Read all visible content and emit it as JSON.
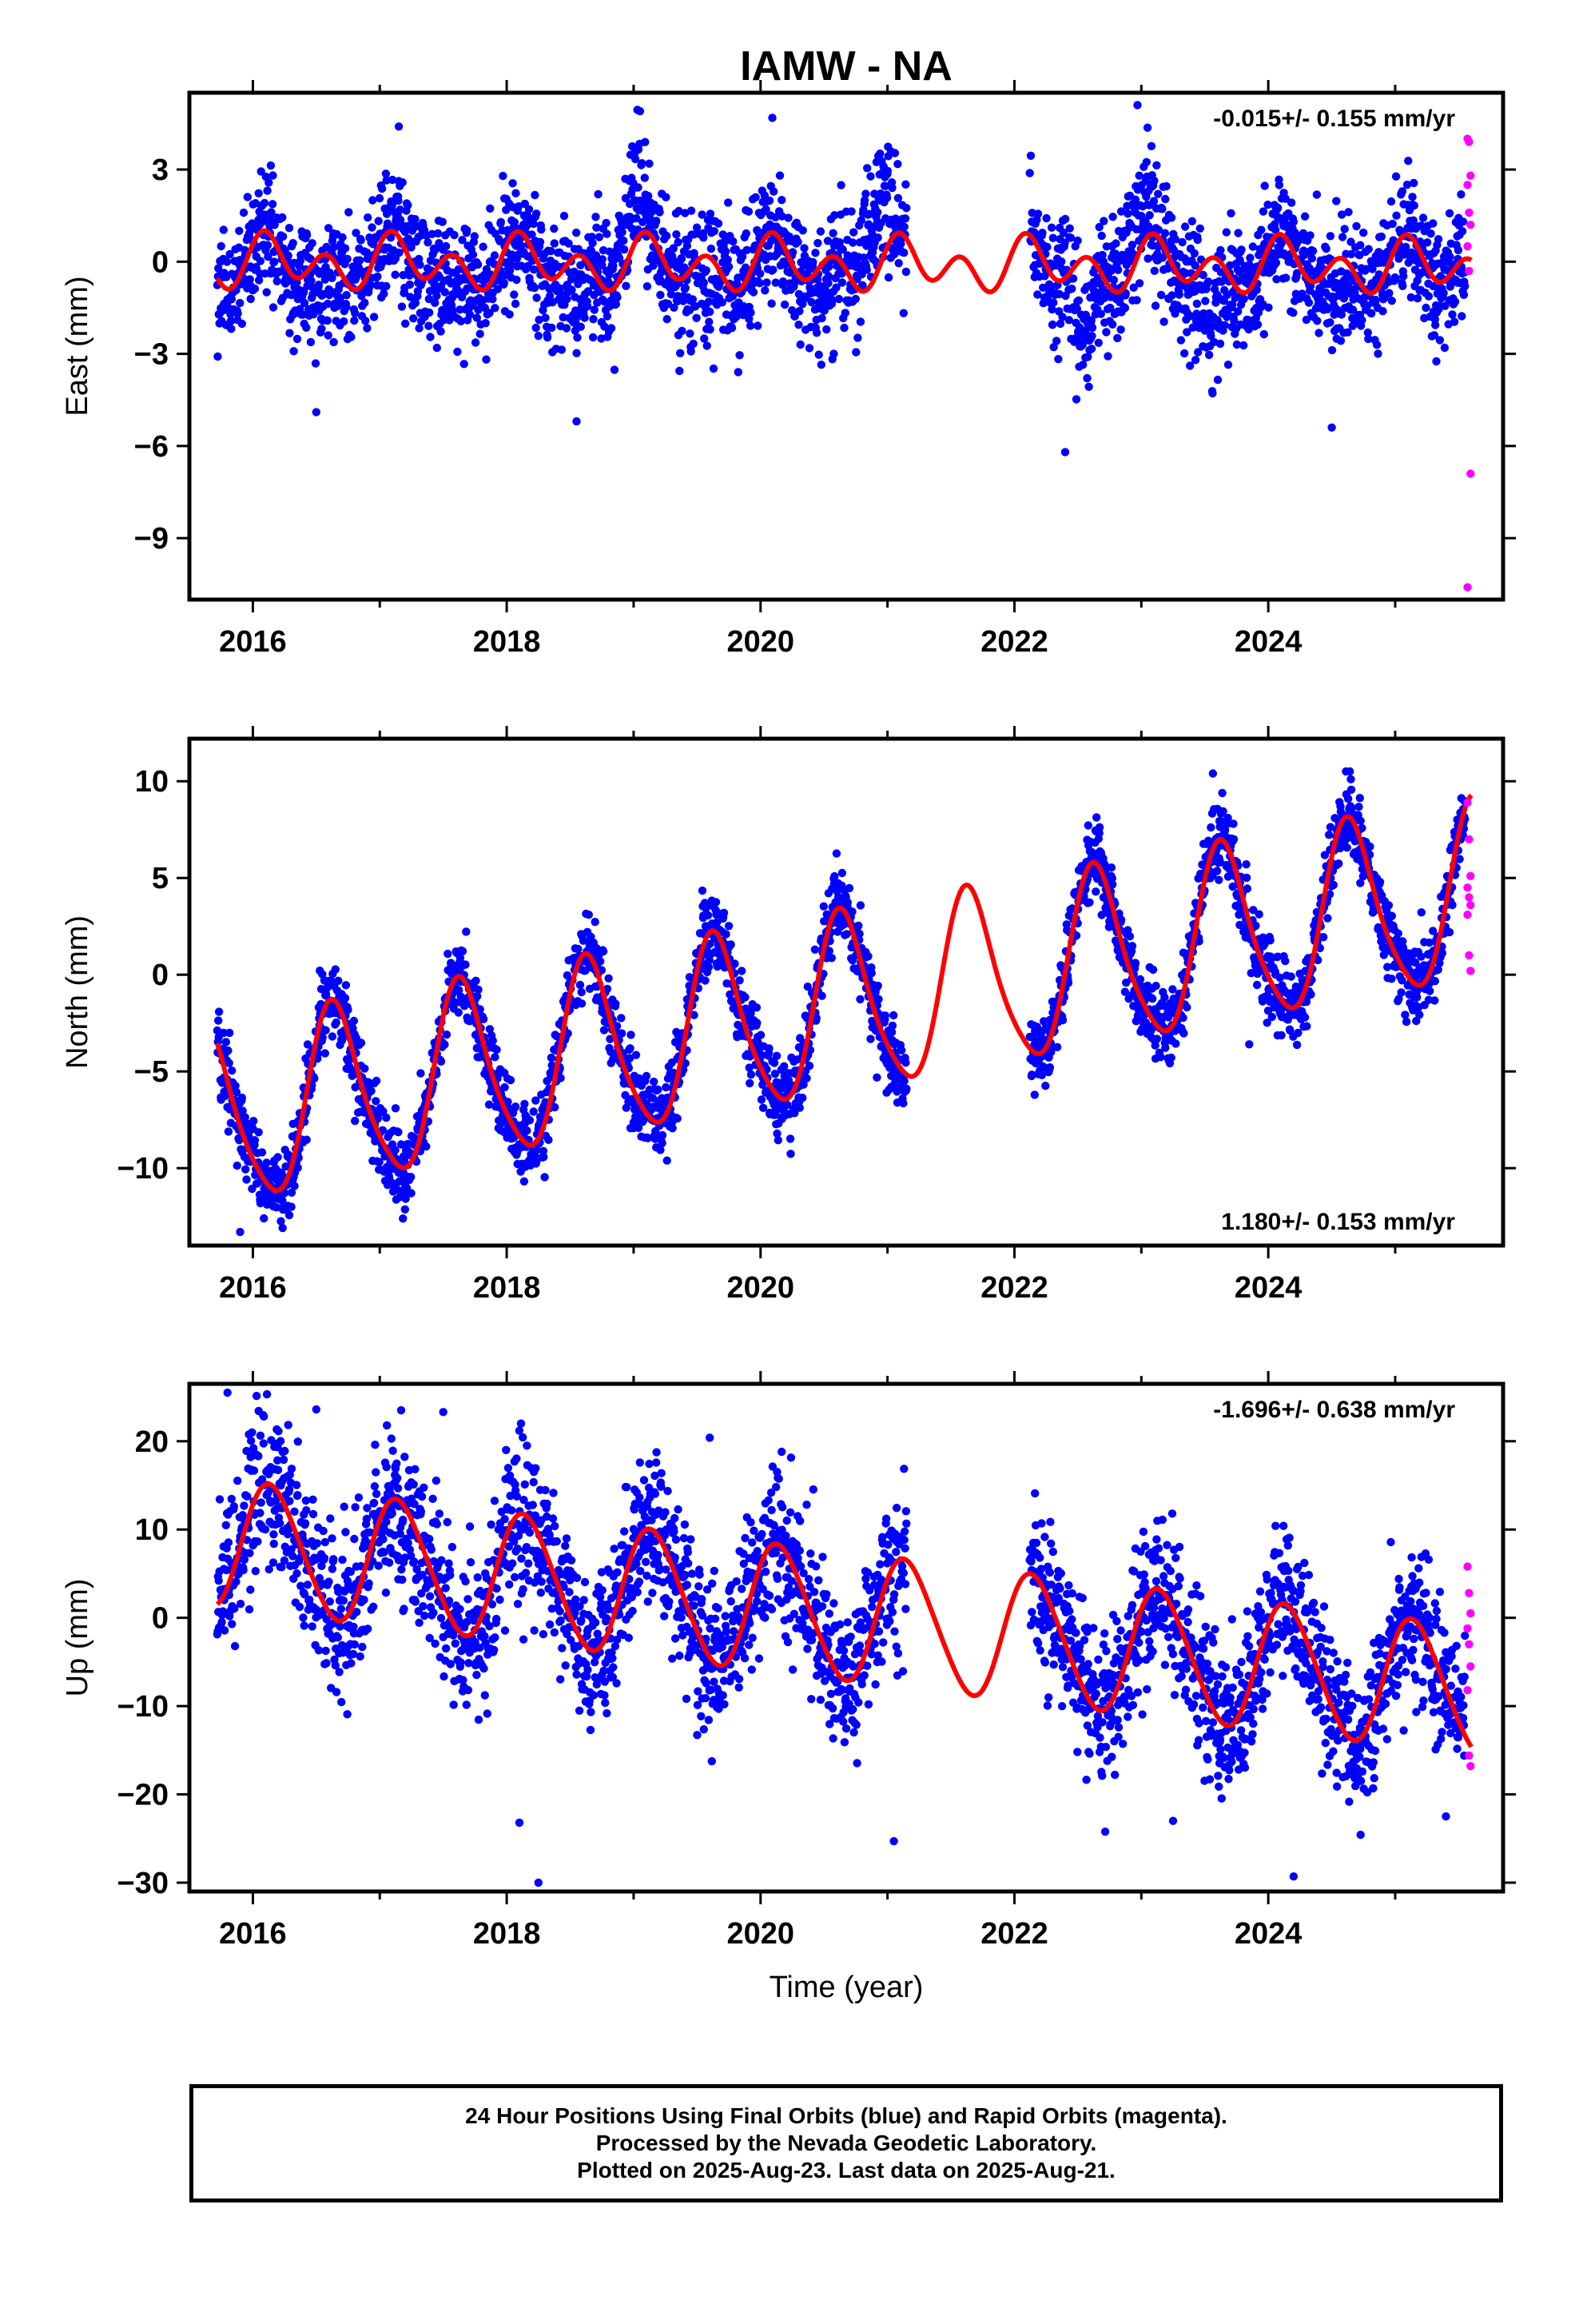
{
  "title": "IAMW - NA",
  "xlabel": "Time (year)",
  "x_ticks": [
    "2016",
    "2018",
    "2020",
    "2022",
    "2024"
  ],
  "colors": {
    "final": "#0000ff",
    "rapid": "#ff00ff",
    "model": "#ff0000",
    "axis": "#000000"
  },
  "chart_data": [
    {
      "type": "scatter",
      "id": "east",
      "ylabel": "East (mm)",
      "rate_label": "-0.015+/- 0.155 mm/yr",
      "rate_position": "top-right",
      "xlim": [
        2015.5,
        2025.85
      ],
      "ylim": [
        -11,
        5.5
      ],
      "y_ticks": [
        3,
        0,
        -3,
        -6,
        -9
      ],
      "y_tick_labels": [
        "3",
        "0",
        "−3",
        "−6",
        "−9"
      ],
      "data_span": [
        2015.72,
        2025.55
      ],
      "gaps": [
        [
          2021.15,
          2022.12
        ]
      ],
      "model": {
        "mean": -0.1,
        "trend": -0.015,
        "annual_cos": 0.25,
        "annual_sin": 0.35,
        "semi_cos": 0.35,
        "semi_sin": 0.55,
        "ramp_start": 2015.72,
        "ramp_end": 2025.6
      },
      "blue_noise": 1.0,
      "summer_dips": [
        [
          2016.55,
          -1.4
        ],
        [
          2017.55,
          -1.1
        ],
        [
          2018.55,
          -1.2
        ],
        [
          2019.55,
          -1.0
        ],
        [
          2020.5,
          -1.2
        ],
        [
          2022.55,
          -2.6
        ],
        [
          2023.55,
          -2.2
        ],
        [
          2024.55,
          -1.6
        ]
      ],
      "winter_bumps": [
        [
          2019.0,
          1.4
        ],
        [
          2020.9,
          2.2
        ],
        [
          2022.95,
          1.3
        ]
      ],
      "magenta_points": [
        4.0,
        3.9,
        2.8,
        2.5,
        1.6,
        1.2,
        0.5,
        -0.3,
        -6.9,
        -10.6
      ],
      "outliers": [
        [
          2022.97,
          5.1
        ],
        [
          2017.15,
          4.4
        ],
        [
          2019.05,
          4.9
        ],
        [
          2016.5,
          -4.9
        ],
        [
          2018.55,
          -5.2
        ],
        [
          2022.4,
          -6.2
        ],
        [
          2024.5,
          -5.4
        ]
      ]
    },
    {
      "type": "scatter",
      "id": "north",
      "ylabel": "North (mm)",
      "rate_label": "1.180+/- 0.153 mm/yr",
      "rate_position": "bottom-right",
      "xlim": [
        2015.5,
        2025.85
      ],
      "ylim": [
        -14,
        12.2
      ],
      "y_ticks": [
        10,
        5,
        0,
        -5,
        -10
      ],
      "y_tick_labels": [
        "10",
        "5",
        "0",
        "−5",
        "−10"
      ],
      "data_span": [
        2015.72,
        2025.55
      ],
      "gaps": [
        [
          2021.15,
          2022.12
        ]
      ],
      "model": {
        "mean": -1.7,
        "trend": 1.18,
        "annual_cos": -2.8,
        "annual_sin": -3.6,
        "semi_cos": 0.4,
        "semi_sin": 0.6,
        "ramp_start": 2015.72,
        "ramp_end": 2025.6
      },
      "blue_noise": 1.0,
      "summer_dips": [],
      "winter_bumps": [],
      "magenta_points": [
        8.9,
        7.0,
        5.1,
        4.5,
        4.0,
        3.6,
        3.1,
        1.0,
        0.2
      ],
      "outliers": [
        [
          2015.9,
          -13.3
        ],
        [
          2023.85,
          -3.6
        ]
      ]
    },
    {
      "type": "scatter",
      "id": "up",
      "ylabel": "Up (mm)",
      "rate_label": "-1.696+/- 0.638 mm/yr",
      "rate_position": "top-right",
      "xlim": [
        2015.5,
        2025.85
      ],
      "ylim": [
        -31,
        26.5
      ],
      "y_ticks": [
        20,
        10,
        0,
        -10,
        -20,
        -30
      ],
      "y_tick_labels": [
        "20",
        "10",
        "0",
        "−10",
        "−20",
        "−30"
      ],
      "data_span": [
        2015.72,
        2025.55
      ],
      "gaps": [
        [
          2021.15,
          2022.12
        ]
      ],
      "model": {
        "mean": 0.2,
        "trend": -1.696,
        "annual_cos": 4.2,
        "annual_sin": 5.8,
        "semi_cos": 0.6,
        "semi_sin": 0.3,
        "ramp_start": 2015.72,
        "ramp_end": 2025.6
      },
      "blue_noise": 4.2,
      "summer_dips": [],
      "winter_bumps": [],
      "magenta_points": [
        5.8,
        2.8,
        0.5,
        -1.2,
        -3.0,
        -5.5,
        -8.2,
        -15.6,
        -16.8
      ],
      "outliers": [
        [
          2015.8,
          25.5
        ],
        [
          2016.5,
          23.6
        ],
        [
          2017.5,
          23.3
        ],
        [
          2018.1,
          -23.2
        ],
        [
          2018.25,
          -30.0
        ],
        [
          2019.6,
          20.4
        ],
        [
          2021.05,
          -25.3
        ],
        [
          2023.25,
          -23.0
        ],
        [
          2024.2,
          -29.3
        ],
        [
          2025.4,
          -22.5
        ]
      ]
    }
  ],
  "footer": {
    "line1": "24 Hour Positions Using Final Orbits (blue) and Rapid Orbits (magenta).",
    "line2": "Processed by the Nevada Geodetic Laboratory.",
    "line3": "Plotted on 2025-Aug-23. Last data on 2025-Aug-21."
  }
}
